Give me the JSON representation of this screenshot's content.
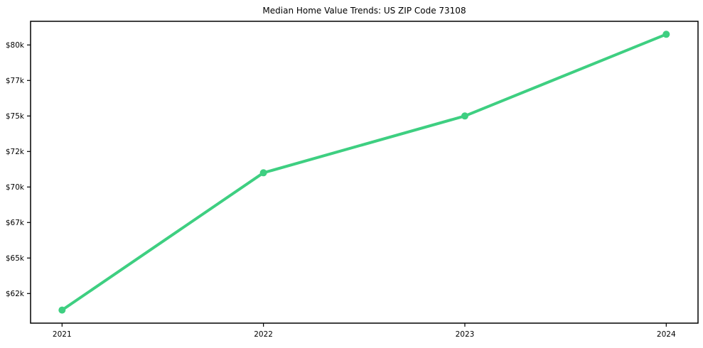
{
  "chart_data": {
    "type": "line",
    "title": "Median Home Value Trends: US ZIP Code 73108",
    "categories": [
      "2021",
      "2022",
      "2023",
      "2024"
    ],
    "series": [
      {
        "name": "Median home value",
        "values": [
          60600,
          70800,
          75000,
          80900
        ]
      }
    ],
    "x_ticks": [
      {
        "label": "2021"
      },
      {
        "label": "2022"
      },
      {
        "label": "2023"
      },
      {
        "label": "2024"
      }
    ],
    "y_ticks": [
      {
        "label": "$80k",
        "value": 80000
      },
      {
        "label": "$77k",
        "value": 77000
      },
      {
        "label": "$75k",
        "value": 75000
      },
      {
        "label": "$72k",
        "value": 72000
      },
      {
        "label": "$70k",
        "value": 70000
      },
      {
        "label": "$67k",
        "value": 67000
      },
      {
        "label": "$65k",
        "value": 65000
      },
      {
        "label": "$62k",
        "value": 62000
      }
    ],
    "xlabel": "",
    "ylabel": "",
    "ylim": [
      59500,
      82000
    ],
    "grid": false,
    "legend": "none",
    "line_color": "#3ecf81",
    "marker": "circle",
    "axis_color": "#000000",
    "background_color": "#ffffff"
  }
}
